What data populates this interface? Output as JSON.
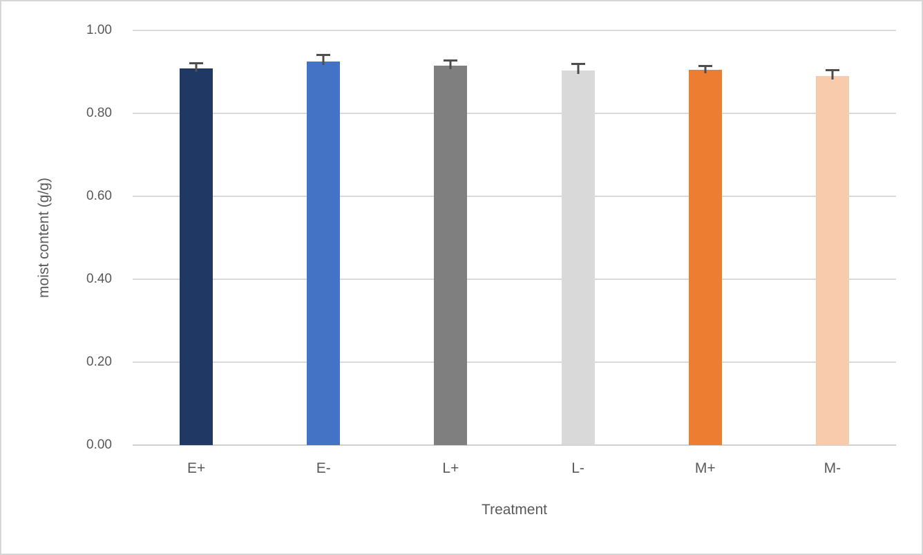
{
  "chart_data": {
    "type": "bar",
    "title": "",
    "categories": [
      "E+",
      "E-",
      "L+",
      "L-",
      "M+",
      "M-"
    ],
    "values": [
      0.908,
      0.925,
      0.915,
      0.903,
      0.905,
      0.89
    ],
    "errors_plus": [
      0.015,
      0.018,
      0.015,
      0.018,
      0.012,
      0.017
    ],
    "bar_colors": [
      "#203864",
      "#4472C4",
      "#7F7F7F",
      "#D9D9D9",
      "#ED7D31",
      "#F8CBAD"
    ],
    "xlabel": "Treatment",
    "ylabel": "moist content (g/g)",
    "ylim": [
      0.0,
      1.0
    ],
    "ytick_step": 0.2,
    "ytick_labels": [
      "0.00",
      "0.20",
      "0.40",
      "0.60",
      "0.80",
      "1.00"
    ],
    "grid": true,
    "gridline_color": "#D9D9D9",
    "error_bar_color": "#4D4D4D",
    "text_color": "#595959",
    "legend_position": "none"
  }
}
